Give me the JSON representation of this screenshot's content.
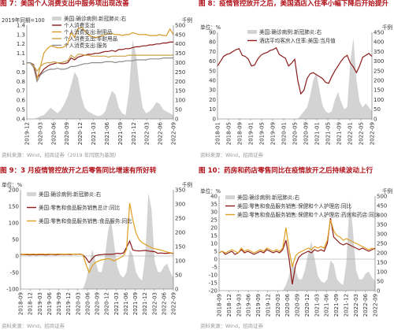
{
  "panels": [
    {
      "title": "图 7：美国个人消费支出中服务项出现改善",
      "source": "资料来源：Wind，招商证券（2019 年同期为基期）",
      "chart_data": {
        "type": "line",
        "left_unit": "2019年同期=100",
        "right_unit": "千例",
        "ylim_left": [
          0.4,
          1.4
        ],
        "left_ticks": [
          "0.4",
          "0.5",
          "0.6",
          "0.7",
          "0.8",
          "0.9",
          "1",
          "1.1",
          "1.2",
          "1.3",
          "1.4"
        ],
        "ylim_right": [
          0,
          500
        ],
        "right_ticks": [
          "0",
          "50",
          "100",
          "150",
          "200",
          "250",
          "300",
          "350",
          "400",
          "450",
          "500"
        ],
        "x_labels": [
          "2019-12",
          "2020-03",
          "2020-06",
          "2020-09",
          "2020-12",
          "2021-03",
          "2021-06",
          "2021-09",
          "2021-12",
          "2022-03",
          "2022-06",
          "2022-09"
        ],
        "area": {
          "name": "美国:确诊病例:新冠肺炎:右",
          "values": [
            0,
            0,
            0,
            5,
            15,
            20,
            40,
            60,
            45,
            30,
            50,
            80,
            120,
            180,
            250,
            220,
            120,
            60,
            40,
            30,
            20,
            15,
            20,
            40,
            100,
            150,
            130,
            60,
            30,
            20,
            150,
            420,
            350,
            180,
            60,
            30,
            40,
            60,
            90,
            80,
            50,
            40,
            30,
            20
          ]
        },
        "series": [
          {
            "name": "个人消费支出",
            "color": "#8b1a1a",
            "values": [
              1.0,
              1.0,
              0.98,
              0.84,
              0.88,
              0.93,
              0.96,
              0.98,
              0.99,
              1.0,
              0.99,
              0.99,
              1.0,
              1.05,
              1.03,
              1.06,
              1.07,
              1.08,
              1.09,
              1.09,
              1.1,
              1.1,
              1.11,
              1.12,
              1.12,
              1.13,
              1.12,
              1.14,
              1.14,
              1.15,
              1.15,
              1.16,
              1.17,
              1.17,
              1.18,
              1.18,
              1.19,
              1.19,
              1.2,
              1.2,
              1.21,
              1.21,
              1.22,
              1.22
            ]
          },
          {
            "name": "个人消费支出:耐用品",
            "color": "#d99a2b",
            "values": [
              1.0,
              1.0,
              0.95,
              0.82,
              0.96,
              1.1,
              1.15,
              1.18,
              1.17,
              1.16,
              1.16,
              1.17,
              1.2,
              1.32,
              1.27,
              1.36,
              1.38,
              1.34,
              1.3,
              1.28,
              1.27,
              1.27,
              1.29,
              1.3,
              1.31,
              1.31,
              1.3,
              1.3,
              1.29,
              1.3,
              1.3,
              1.32,
              1.31,
              1.3,
              1.3,
              1.3,
              1.29,
              1.29,
              1.29,
              1.3,
              1.29,
              1.29,
              1.36,
              1.3
            ]
          },
          {
            "name": "个人消费支出:非耐用品",
            "color": "#c9a24a",
            "values": [
              1.0,
              1.0,
              0.97,
              0.91,
              0.96,
              0.99,
              1.0,
              1.0,
              1.01,
              1.0,
              1.0,
              1.01,
              1.02,
              1.08,
              1.05,
              1.09,
              1.09,
              1.08,
              1.08,
              1.07,
              1.07,
              1.07,
              1.07,
              1.07,
              1.06,
              1.07,
              1.07,
              1.07,
              1.07,
              1.07,
              1.08,
              1.08,
              1.08,
              1.08,
              1.08,
              1.08,
              1.08,
              1.08,
              1.08,
              1.08,
              1.08,
              1.08,
              1.08,
              1.08
            ]
          },
          {
            "name": "个人消费支出:服务",
            "color": "#8c8c8c",
            "values": [
              1.0,
              1.0,
              0.95,
              0.8,
              0.87,
              0.9,
              0.92,
              0.93,
              0.93,
              0.94,
              0.93,
              0.93,
              0.94,
              0.96,
              0.96,
              0.97,
              0.98,
              0.99,
              0.99,
              1.0,
              1.0,
              1.0,
              1.0,
              1.01,
              1.01,
              1.01,
              1.0,
              1.01,
              1.01,
              1.02,
              1.02,
              1.02,
              1.03,
              1.03,
              1.03,
              1.03,
              1.04,
              1.04,
              1.04,
              1.04,
              1.05,
              1.05,
              1.05,
              1.05
            ]
          }
        ]
      }
    },
    {
      "title": "图 8：疫情管控放开之后，美国酒店入住率小幅下降后开始提升",
      "source": "资料来源：Wind，招商证券",
      "chart_data": {
        "type": "line",
        "left_unit": "单位：%",
        "right_unit": "千例",
        "ylim_left": [
          0,
          90
        ],
        "left_ticks": [
          "0",
          "10",
          "20",
          "30",
          "40",
          "50",
          "60",
          "70",
          "80",
          "90"
        ],
        "ylim_right": [
          0,
          450
        ],
        "right_ticks": [
          "0",
          "50",
          "100",
          "150",
          "200",
          "250",
          "300",
          "350",
          "400",
          "450"
        ],
        "x_labels": [
          "2018-01",
          "2018-05",
          "2018-09",
          "2019-01",
          "2019-05",
          "2019-09",
          "2020-01",
          "2020-05",
          "2020-09",
          "2021-01",
          "2021-05",
          "2021-09",
          "2022-01",
          "2022-05",
          "2022-09"
        ],
        "area": {
          "name": "美国:确诊病例:新冠肺炎:右",
          "values": [
            0,
            0,
            0,
            0,
            0,
            0,
            0,
            0,
            0,
            0,
            0,
            0,
            0,
            0,
            0,
            0,
            0,
            0,
            0,
            0,
            0,
            0,
            0,
            0,
            0,
            0,
            0,
            20,
            40,
            60,
            120,
            200,
            240,
            150,
            70,
            40,
            30,
            40,
            100,
            140,
            90,
            50,
            60,
            300,
            420,
            200,
            90,
            60,
            80,
            60,
            40
          ]
        },
        "series": [
          {
            "name": "酒店平均客房入住率:美国:当月值",
            "color": "#8b1a1a",
            "values": [
              55,
              60,
              65,
              67,
              68,
              70,
              72,
              73,
              66,
              65,
              62,
              55,
              56,
              62,
              66,
              68,
              69,
              71,
              72,
              74,
              67,
              65,
              63,
              55,
              58,
              62,
              40,
              26,
              30,
              42,
              47,
              48,
              46,
              44,
              42,
              38,
              37,
              44,
              50,
              55,
              60,
              64,
              66,
              58,
              54,
              48,
              55,
              64,
              66,
              68,
              65
            ]
          }
        ]
      }
    },
    {
      "title": "图 9：3 月疫情管控放开之后零售同比增速有所好转",
      "source": "资料来源：Wind，招商证券",
      "chart_data": {
        "type": "line",
        "left_unit": "单位：%",
        "right_unit": "千例",
        "ylim_left": [
          -100,
          200
        ],
        "left_ticks": [
          "-100",
          "-50",
          "0",
          "50",
          "100",
          "150",
          "200"
        ],
        "ylim_right": [
          0,
          350
        ],
        "right_ticks": [
          "0",
          "50",
          "100",
          "150",
          "200",
          "250",
          "300",
          "350"
        ],
        "x_labels": [
          "2018-09",
          "2018-12",
          "2019-03",
          "2019-06",
          "2019-09",
          "2019-12",
          "2020-03",
          "2020-06",
          "2020-09",
          "2020-12",
          "2021-03",
          "2021-06",
          "2021-09",
          "2021-12",
          "2022-03",
          "2022-06",
          "2022-09"
        ],
        "area": {
          "name": "美国:确诊病例:新冠肺炎:右",
          "values": [
            0,
            0,
            0,
            0,
            0,
            0,
            0,
            0,
            0,
            0,
            0,
            0,
            0,
            0,
            0,
            0,
            0,
            0,
            0,
            0,
            0,
            30,
            80,
            140,
            100,
            60,
            60,
            110,
            200,
            250,
            160,
            80,
            50,
            40,
            60,
            140,
            120,
            60,
            40,
            30,
            120,
            340,
            280,
            100,
            60,
            60,
            80,
            90,
            60,
            40
          ]
        },
        "series": [
          {
            "name": "美国:零售和食品服务销售总计:同比",
            "color": "#8b1a1a",
            "values": [
              5,
              4,
              4,
              3,
              4,
              3,
              4,
              4,
              3,
              4,
              5,
              3,
              4,
              5,
              4,
              5,
              4,
              5,
              5,
              6,
              3,
              -6,
              -20,
              -8,
              1,
              3,
              4,
              5,
              5,
              5,
              6,
              8,
              7,
              9,
              26,
              45,
              18,
              16,
              15,
              16,
              17,
              15,
              14,
              13,
              8,
              9,
              8,
              8,
              9,
              7
            ]
          },
          {
            "name": "美国:零售和食品服务销售:食品服务:同比",
            "color": "#e0a020",
            "values": [
              6,
              5,
              6,
              5,
              6,
              5,
              6,
              6,
              5,
              6,
              6,
              5,
              6,
              6,
              5,
              6,
              6,
              5,
              6,
              5,
              3,
              -25,
              -50,
              -30,
              -20,
              -15,
              -12,
              -10,
              -8,
              -10,
              -15,
              -10,
              -5,
              0,
              20,
              160,
              110,
              70,
              50,
              40,
              35,
              30,
              25,
              22,
              20,
              18,
              15,
              12,
              10,
              8
            ]
          }
        ]
      }
    },
    {
      "title": "图 10：药房和药店零售同比在疫情放开之后持续波动上行",
      "source": "资料来源：Wind，招商证券",
      "chart_data": {
        "type": "line",
        "left_unit": "单位：%",
        "right_unit": "千例",
        "ylim_left": [
          -20,
          40
        ],
        "left_ticks": [
          "-20",
          "-15",
          "-10",
          "-5",
          "0",
          "5",
          "10",
          "15",
          "20",
          "25",
          "30",
          "35",
          "40"
        ],
        "ylim_right": [
          0,
          500
        ],
        "right_ticks": [
          "0",
          "50",
          "100",
          "150",
          "200",
          "250",
          "300",
          "350",
          "400",
          "450",
          "500"
        ],
        "x_labels": [
          "2018-09",
          "2018-12",
          "2019-03",
          "2019-06",
          "2019-09",
          "2019-12",
          "2020-03",
          "2020-06",
          "2020-09",
          "2020-12",
          "2021-03",
          "2021-06",
          "2021-09",
          "2021-12",
          "2022-03",
          "2022-06",
          "2022-09"
        ],
        "area": {
          "name": "美国:确诊病例:新冠肺炎:右",
          "values": [
            0,
            0,
            0,
            0,
            0,
            0,
            0,
            0,
            0,
            0,
            0,
            0,
            0,
            0,
            0,
            0,
            0,
            0,
            0,
            0,
            0,
            30,
            80,
            150,
            110,
            60,
            60,
            110,
            200,
            260,
            170,
            80,
            50,
            40,
            60,
            160,
            140,
            60,
            40,
            30,
            150,
            480,
            330,
            110,
            60,
            60,
            90,
            100,
            70,
            50
          ]
        },
        "series": [
          {
            "name": "美国:零售和食品服务销售:保健和个人护理店:同比",
            "color": "#8b1a1a",
            "values": [
              4,
              5,
              3,
              4,
              5,
              3,
              4,
              6,
              4,
              5,
              4,
              3,
              4,
              5,
              4,
              6,
              5,
              4,
              5,
              4,
              6,
              12,
              0,
              -16,
              -4,
              1,
              3,
              4,
              5,
              4,
              6,
              5,
              6,
              5,
              10,
              26,
              14,
              12,
              10,
              9,
              10,
              9,
              8,
              7,
              6,
              7,
              6,
              5,
              6,
              7
            ]
          },
          {
            "name": "美国:零售和食品服务销售:保健和个人护理店:药房和药店:同比",
            "color": "#e0a020",
            "values": [
              4,
              5,
              4,
              5,
              6,
              5,
              4,
              7,
              5,
              6,
              5,
              4,
              5,
              6,
              5,
              7,
              6,
              5,
              6,
              5,
              7,
              20,
              6,
              -5,
              2,
              4,
              5,
              6,
              7,
              6,
              8,
              7,
              8,
              7,
              12,
              25,
              18,
              15,
              14,
              12,
              13,
              12,
              11,
              10,
              9,
              8,
              7,
              6,
              7,
              6
            ]
          }
        ]
      }
    }
  ]
}
